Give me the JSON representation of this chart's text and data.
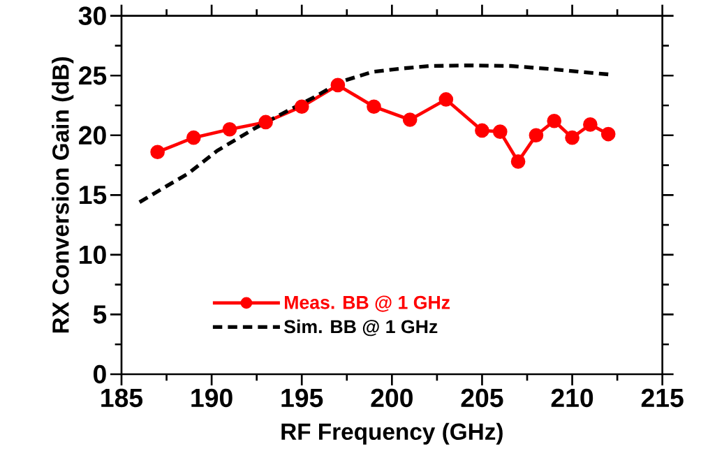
{
  "chart_data": {
    "type": "line",
    "xlabel": "RF Frequency (GHz)",
    "ylabel": "RX Conversion Gain (dB)",
    "xlim": [
      185,
      215
    ],
    "xticks": [
      185,
      190,
      195,
      200,
      205,
      210,
      215
    ],
    "ylim": [
      0,
      30
    ],
    "yticks": [
      0,
      5,
      10,
      15,
      20,
      25,
      30
    ],
    "legend": "bottom left",
    "grid": false,
    "series": [
      {
        "name": "Meas. BB @ 1 GHz",
        "color": "#ff0000",
        "marker": "circle",
        "line_style": "solid",
        "x": [
          187,
          189,
          191,
          193,
          195,
          197,
          199,
          201,
          203,
          205,
          206,
          207,
          208,
          209,
          210,
          211,
          212
        ],
        "values": [
          18.6,
          19.8,
          20.5,
          21.1,
          22.4,
          24.2,
          22.4,
          21.3,
          23.0,
          20.4,
          20.3,
          17.8,
          20.0,
          21.2,
          19.8,
          20.9,
          20.1
        ]
      },
      {
        "name": "Sim. BB @ 1 GHz",
        "color": "#000000",
        "marker": "none",
        "line_style": "dashed",
        "x": [
          186,
          187,
          188.7,
          190.3,
          192.3,
          193.9,
          195.7,
          197.2,
          198.9,
          200.6,
          202.1,
          204.3,
          206.6,
          208.8,
          210.5,
          212
        ],
        "values": [
          14.4,
          15.3,
          16.8,
          18.7,
          20.5,
          21.8,
          23.2,
          24.5,
          25.3,
          25.6,
          25.8,
          25.85,
          25.8,
          25.55,
          25.3,
          25.1
        ]
      }
    ]
  }
}
